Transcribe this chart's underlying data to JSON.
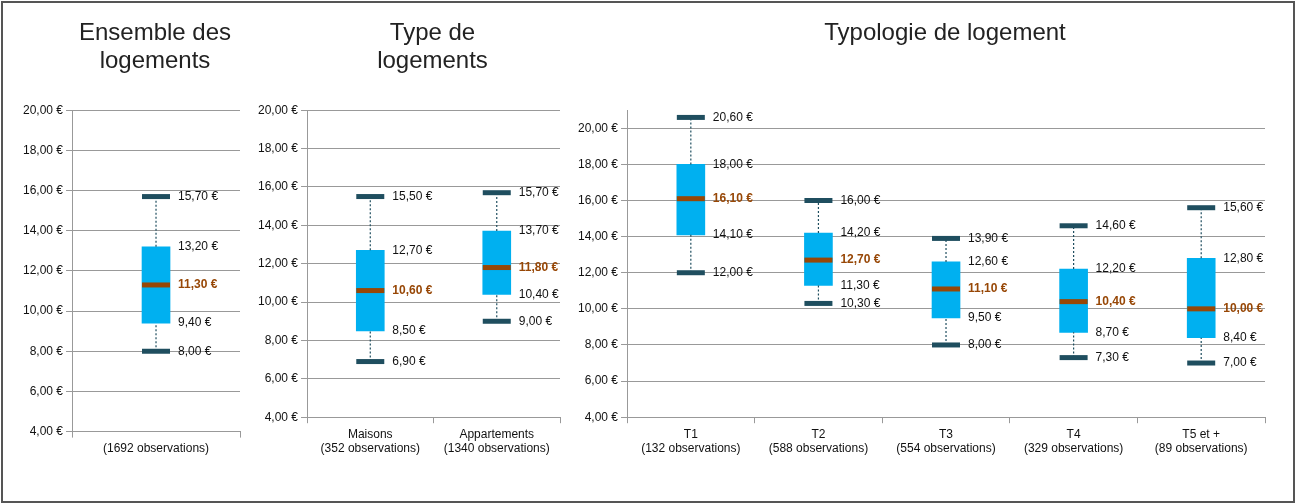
{
  "chart_data": [
    {
      "type": "box",
      "title": "Ensemble des logements",
      "categories": [
        "(1692 observations)"
      ],
      "color": "#00b0f0",
      "ylim": [
        4,
        20
      ],
      "yticks": [
        {
          "value": 4,
          "label": "4,00 €"
        },
        {
          "value": 6,
          "label": "6,00 €"
        },
        {
          "value": 8,
          "label": "8,00 €"
        },
        {
          "value": 10,
          "label": "10,00 €"
        },
        {
          "value": 12,
          "label": "12,00 €"
        },
        {
          "value": 14,
          "label": "14,00 €"
        },
        {
          "value": 16,
          "label": "16,00 €"
        },
        {
          "value": 18,
          "label": "18,00 €"
        },
        {
          "value": 20,
          "label": "20,00 €"
        }
      ],
      "grid": "y",
      "boxes": [
        {
          "low": 8.0,
          "q1": 9.4,
          "median": 11.3,
          "q3": 13.2,
          "high": 15.7
        }
      ],
      "value_labels": [
        [
          "8,00 €",
          "9,40 €",
          "11,30 €",
          "13,20 €",
          "15,70 €"
        ]
      ]
    },
    {
      "type": "box",
      "title": "Type de logements",
      "categories": [
        "Maisons\n(352 observations)",
        "Appartements\n(1340 observations)"
      ],
      "color": "#00b0f0",
      "ylim": [
        4,
        20
      ],
      "yticks": [
        {
          "value": 4,
          "label": "4,00 €"
        },
        {
          "value": 6,
          "label": "6,00 €"
        },
        {
          "value": 8,
          "label": "8,00 €"
        },
        {
          "value": 10,
          "label": "10,00 €"
        },
        {
          "value": 12,
          "label": "12,00 €"
        },
        {
          "value": 14,
          "label": "14,00 €"
        },
        {
          "value": 16,
          "label": "16,00 €"
        },
        {
          "value": 18,
          "label": "18,00 €"
        },
        {
          "value": 20,
          "label": "20,00 €"
        }
      ],
      "grid": "y",
      "boxes": [
        {
          "low": 6.9,
          "q1": 8.5,
          "median": 10.6,
          "q3": 12.7,
          "high": 15.5
        },
        {
          "low": 9.0,
          "q1": 10.4,
          "median": 11.8,
          "q3": 13.7,
          "high": 15.7
        }
      ],
      "value_labels": [
        [
          "6,90 €",
          "8,50 €",
          "10,60 €",
          "12,70 €",
          "15,50 €"
        ],
        [
          "9,00 €",
          "10,40 €",
          "11,80 €",
          "13,70 €",
          "15,70 €"
        ]
      ]
    },
    {
      "type": "box",
      "title": "Typologie de logement",
      "categories": [
        "T1\n(132 observations)",
        "T2\n(588 observations)",
        "T3\n(554 observations)",
        "T4\n(329 observations)",
        "T5 et +\n(89 observations)"
      ],
      "color": "#00b0f0",
      "ylim": [
        4,
        21
      ],
      "yticks": [
        {
          "value": 4,
          "label": "4,00 €"
        },
        {
          "value": 6,
          "label": "6,00 €"
        },
        {
          "value": 8,
          "label": "8,00 €"
        },
        {
          "value": 10,
          "label": "10,00 €"
        },
        {
          "value": 12,
          "label": "12,00 €"
        },
        {
          "value": 14,
          "label": "14,00 €"
        },
        {
          "value": 16,
          "label": "16,00 €"
        },
        {
          "value": 18,
          "label": "18,00 €"
        },
        {
          "value": 20,
          "label": "20,00 €"
        }
      ],
      "grid": "y",
      "boxes": [
        {
          "low": 12.0,
          "q1": 14.1,
          "median": 16.1,
          "q3": 18.0,
          "high": 20.6
        },
        {
          "low": 10.3,
          "q1": 11.3,
          "median": 12.7,
          "q3": 14.2,
          "high": 16.0
        },
        {
          "low": 8.0,
          "q1": 9.5,
          "median": 11.1,
          "q3": 12.6,
          "high": 13.9
        },
        {
          "low": 7.3,
          "q1": 8.7,
          "median": 10.4,
          "q3": 12.2,
          "high": 14.6
        },
        {
          "low": 7.0,
          "q1": 8.4,
          "median": 10.0,
          "q3": 12.8,
          "high": 15.6
        }
      ],
      "value_labels": [
        [
          "12,00 €",
          "14,10 €",
          "16,10 €",
          "18,00 €",
          "20,60 €"
        ],
        [
          "10,30 €",
          "11,30 €",
          "12,70 €",
          "14,20 €",
          "16,00 €"
        ],
        [
          "8,00 €",
          "9,50 €",
          "11,10 €",
          "12,60 €",
          "13,90 €"
        ],
        [
          "7,30 €",
          "8,70 €",
          "10,40 €",
          "12,20 €",
          "14,60 €"
        ],
        [
          "7,00 €",
          "8,40 €",
          "10,00 €",
          "12,80 €",
          "15,60 €"
        ]
      ]
    }
  ]
}
